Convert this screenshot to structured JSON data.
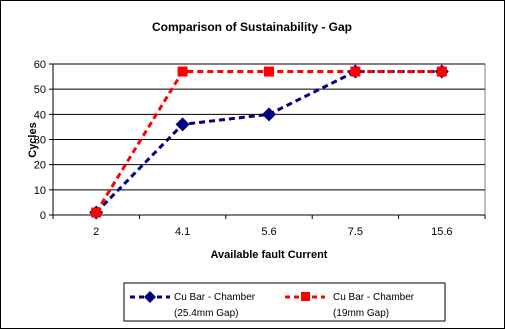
{
  "chart_data": {
    "type": "line",
    "title": "Comparison of Sustainability - Gap",
    "xlabel": "Available fault Current",
    "ylabel": "Cycles",
    "categories": [
      "2",
      "4.1",
      "5.6",
      "7.5",
      "15.6"
    ],
    "ylim": [
      0,
      60
    ],
    "yticks": [
      0,
      10,
      20,
      30,
      40,
      50,
      60
    ],
    "grid": "horizontal",
    "legend_position": "bottom",
    "series": [
      {
        "name_line1": "Cu Bar - Chamber",
        "name_line2": "(25.4mm Gap)",
        "values": [
          1,
          36,
          40,
          57,
          57
        ],
        "color": "#000080",
        "marker": "diamond"
      },
      {
        "name_line1": "Cu Bar - Chamber",
        "name_line2": "(19mm Gap)",
        "values": [
          1,
          57,
          57,
          57,
          57
        ],
        "color": "#ff0000",
        "marker": "square"
      }
    ]
  }
}
